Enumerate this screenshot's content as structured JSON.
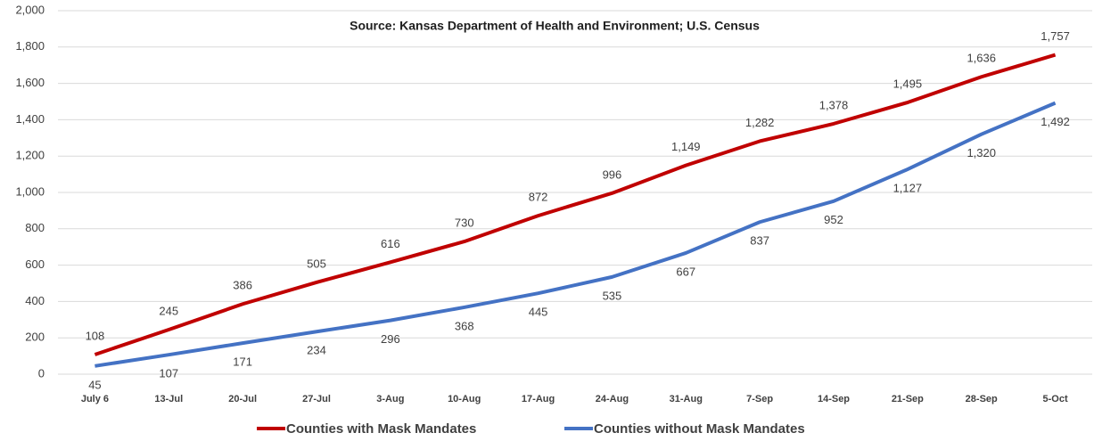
{
  "chart_data": {
    "type": "line",
    "subtitle": "Source: Kansas Department of Health and Environment; U.S. Census",
    "categories": [
      "July 6",
      "13-Jul",
      "20-Jul",
      "27-Jul",
      "3-Aug",
      "10-Aug",
      "17-Aug",
      "24-Aug",
      "31-Aug",
      "7-Sep",
      "14-Sep",
      "21-Sep",
      "28-Sep",
      "5-Oct"
    ],
    "series": [
      {
        "name": "Counties with Mask Mandates",
        "color": "#c00000",
        "values": [
          108,
          245,
          386,
          505,
          616,
          730,
          872,
          996,
          1149,
          1282,
          1378,
          1495,
          1636,
          1757
        ],
        "value_labels": [
          "108",
          "245",
          "386",
          "505",
          "616",
          "730",
          "872",
          "996",
          "1,149",
          "1,282",
          "1,378",
          "1,495",
          "1,636",
          "1,757"
        ]
      },
      {
        "name": "Counties without Mask Mandates",
        "color": "#4472c4",
        "values": [
          45,
          107,
          171,
          234,
          296,
          368,
          445,
          535,
          667,
          837,
          952,
          1127,
          1320,
          1492
        ],
        "value_labels": [
          "45",
          "107",
          "171",
          "234",
          "296",
          "368",
          "445",
          "535",
          "667",
          "837",
          "952",
          "1,127",
          "1,320",
          "1,492"
        ]
      }
    ],
    "ylim": [
      0,
      2000
    ],
    "yticks": [
      0,
      200,
      400,
      600,
      800,
      {
        "value": 1000,
        "label": "1,000"
      },
      {
        "value": 1200,
        "label": "1,200"
      },
      {
        "value": 1400,
        "label": "1,400"
      },
      {
        "value": 1600,
        "label": "1,600"
      },
      {
        "value": 1800,
        "label": "1,800"
      },
      {
        "value": 2000,
        "label": "2,000"
      }
    ],
    "grid": true,
    "legend": "bottom"
  }
}
